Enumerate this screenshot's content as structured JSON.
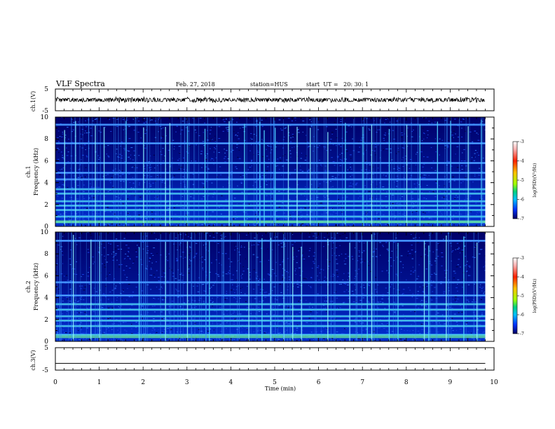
{
  "header": {
    "title": "VLF Spectra",
    "date": "Feb. 27, 2018",
    "station": "station=HUS",
    "start": "start  UT =   20: 30: 1"
  },
  "chart_data": [
    {
      "type": "line",
      "panel": "ch1-waveform",
      "ylabel": "ch.1(V)",
      "ylim": [
        -5,
        5
      ],
      "yticks": [
        "5",
        "-5"
      ],
      "xlim": [
        0,
        10
      ],
      "series_description": "dense oscillating waveform centred near 0 V, amplitude roughly ±0.5 V, ending at ~9.8 min",
      "x_end": 9.8,
      "color": "#000000"
    },
    {
      "type": "heatmap",
      "panel": "ch1-spectrogram",
      "ylabel": "ch.1 Frequency (kHz)",
      "ylim": [
        0,
        10
      ],
      "yticks": [
        "0",
        "2",
        "4",
        "6",
        "8",
        "10"
      ],
      "xlim": [
        0,
        9.8
      ],
      "colorbar": {
        "label": "log(PSD)(V²/Hz)",
        "range": [
          -7,
          -3
        ],
        "ticks": [
          "-3",
          "-4",
          "-5",
          "-6",
          "-7"
        ]
      },
      "bands_khz": [
        0.4,
        0.9,
        1.5,
        1.9,
        2.3,
        3.0,
        3.4,
        4.3,
        4.9,
        5.8,
        7.6,
        9.3
      ],
      "vertical_bursts_min": [
        0.2,
        0.45,
        0.9,
        1.1,
        1.6,
        2.0,
        2.5,
        2.6,
        3.0,
        3.4,
        3.95,
        4.3,
        4.65,
        4.75,
        5.0,
        5.3,
        5.5,
        5.8,
        6.2,
        6.6,
        7.0,
        7.2,
        7.6,
        8.0,
        8.3,
        8.7,
        9.0,
        9.4,
        9.7
      ]
    },
    {
      "type": "heatmap",
      "panel": "ch2-spectrogram",
      "ylabel": "ch.2 Frequency (kHz)",
      "ylim": [
        0,
        10
      ],
      "yticks": [
        "0",
        "2",
        "4",
        "6",
        "8",
        "10"
      ],
      "xlim": [
        0,
        9.8
      ],
      "colorbar": {
        "label": "log(PSD)(V²/Hz)",
        "range": [
          -7,
          -3
        ],
        "ticks": [
          "-3",
          "-4",
          "-5",
          "-6",
          "-7"
        ]
      },
      "bands_khz": [
        0.6,
        1.4,
        1.9,
        2.3,
        2.9,
        3.4,
        4.2,
        5.4,
        9.2
      ],
      "vertical_bursts_min": [
        0.4,
        0.8,
        1.0,
        1.9,
        2.5,
        3.0,
        3.5,
        4.4,
        4.7,
        4.9,
        5.2,
        5.4,
        5.6,
        6.2,
        6.7,
        7.1,
        7.2,
        7.6,
        7.8,
        8.4,
        8.5,
        8.9,
        9.3,
        9.6
      ]
    },
    {
      "type": "line",
      "panel": "ch3-waveform",
      "ylabel": "ch.3(V)",
      "ylim": [
        -5,
        5
      ],
      "yticks": [
        "5",
        "-5"
      ],
      "xlim": [
        0,
        10
      ],
      "values": [
        [
          0,
          -2
        ],
        [
          9.8,
          -2
        ]
      ],
      "color": "#000000"
    }
  ],
  "xaxis": {
    "label": "Time (min)",
    "ticks": [
      "0",
      "1",
      "2",
      "3",
      "4",
      "5",
      "6",
      "7",
      "8",
      "9",
      "10"
    ],
    "range": [
      0,
      10
    ]
  }
}
